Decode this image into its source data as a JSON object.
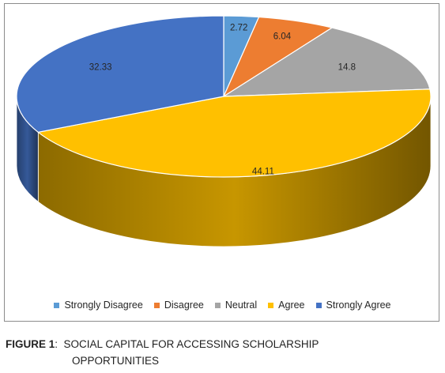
{
  "chart_data": {
    "type": "pie",
    "title": "",
    "categories": [
      "Strongly Disagree",
      "Disagree",
      "Neutral",
      "Agree",
      "Strongly Agree"
    ],
    "values": [
      2.72,
      6.04,
      14.8,
      44.11,
      32.33
    ],
    "labels": [
      "2.72",
      "6.04",
      "14.8",
      "44.11",
      "32.33"
    ],
    "colors": [
      "#5B9BD5",
      "#ED7D31",
      "#A5A5A5",
      "#FFC000",
      "#4472C4"
    ],
    "style": "3d",
    "legend_position": "bottom"
  },
  "caption": {
    "label": "FIGURE 1",
    "separator": ":",
    "line1": "SOCIAL CAPITAL FOR ACCESSING SCHOLARSHIP",
    "line2": "OPPORTUNITIES"
  }
}
